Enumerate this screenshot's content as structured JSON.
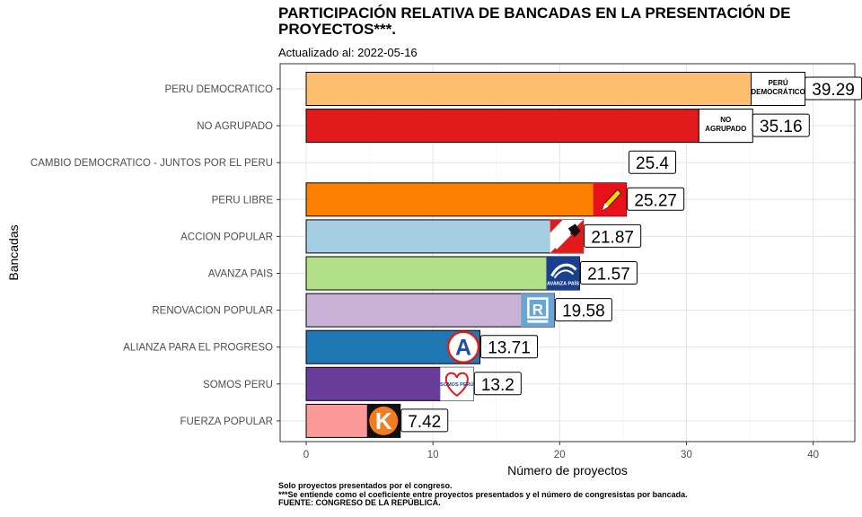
{
  "chart_data": {
    "type": "bar",
    "orientation": "horizontal",
    "title": "PARTICIPACIÓN RELATIVA DE BANCADAS EN LA PRESENTACIÓN DE PROYECTOS***.",
    "subtitle": "Actualizado al: 2022-05-16",
    "xlabel": "Número de proyectos",
    "ylabel": "Bancadas",
    "xlim": [
      -2,
      43
    ],
    "xticks": [
      0,
      10,
      20,
      30,
      40
    ],
    "grid": true,
    "categories": [
      "PERU DEMOCRATICO",
      "NO AGRUPADO",
      "CAMBIO DEMOCRATICO - JUNTOS POR EL PERU",
      "PERU LIBRE",
      "ACCION POPULAR",
      "AVANZA PAIS",
      "RENOVACION POPULAR",
      "ALIANZA PARA EL PROGRESO",
      "SOMOS PERU",
      "FUERZA POPULAR"
    ],
    "values": [
      39.29,
      35.16,
      25.4,
      25.27,
      21.87,
      21.57,
      19.58,
      13.71,
      13.2,
      7.42
    ],
    "value_labels": [
      "39.29",
      "35.16",
      "25.4",
      "25.27",
      "21.87",
      "21.57",
      "19.58",
      "13.71",
      "13.2",
      "7.42"
    ],
    "bar_visible": [
      true,
      true,
      false,
      true,
      true,
      true,
      true,
      true,
      true,
      true
    ],
    "colors": [
      "#FDBF6F",
      "#E31A1C",
      "#FFFFFF",
      "#FF7F00",
      "#A6CEE3",
      "#B2DF8A",
      "#CAB2D6",
      "#1F78B4",
      "#6A3D9A",
      "#FB9A99"
    ],
    "logos": [
      {
        "type": "text",
        "lines": [
          "PERÚ",
          "DEMOCRÁTICO"
        ]
      },
      {
        "type": "text",
        "lines": [
          "NO",
          "AGRUPADO"
        ]
      },
      {
        "type": "none"
      },
      {
        "type": "pencil"
      },
      {
        "type": "shovel"
      },
      {
        "type": "avanza",
        "text": "AVANZA PAÍS"
      },
      {
        "type": "renovacion",
        "text": "R"
      },
      {
        "type": "alianza",
        "text": "A"
      },
      {
        "type": "somos",
        "text": "SOMOS PERÚ"
      },
      {
        "type": "fuerza",
        "text": "K"
      }
    ]
  },
  "caption": [
    "Solo proyectos presentados por el congreso.",
    "***Se entiende como el coeficiente entre proyectos presentados y el número de congresistas por bancada.",
    "FUENTE: CONGRESO DE LA REPÚBLICA."
  ]
}
